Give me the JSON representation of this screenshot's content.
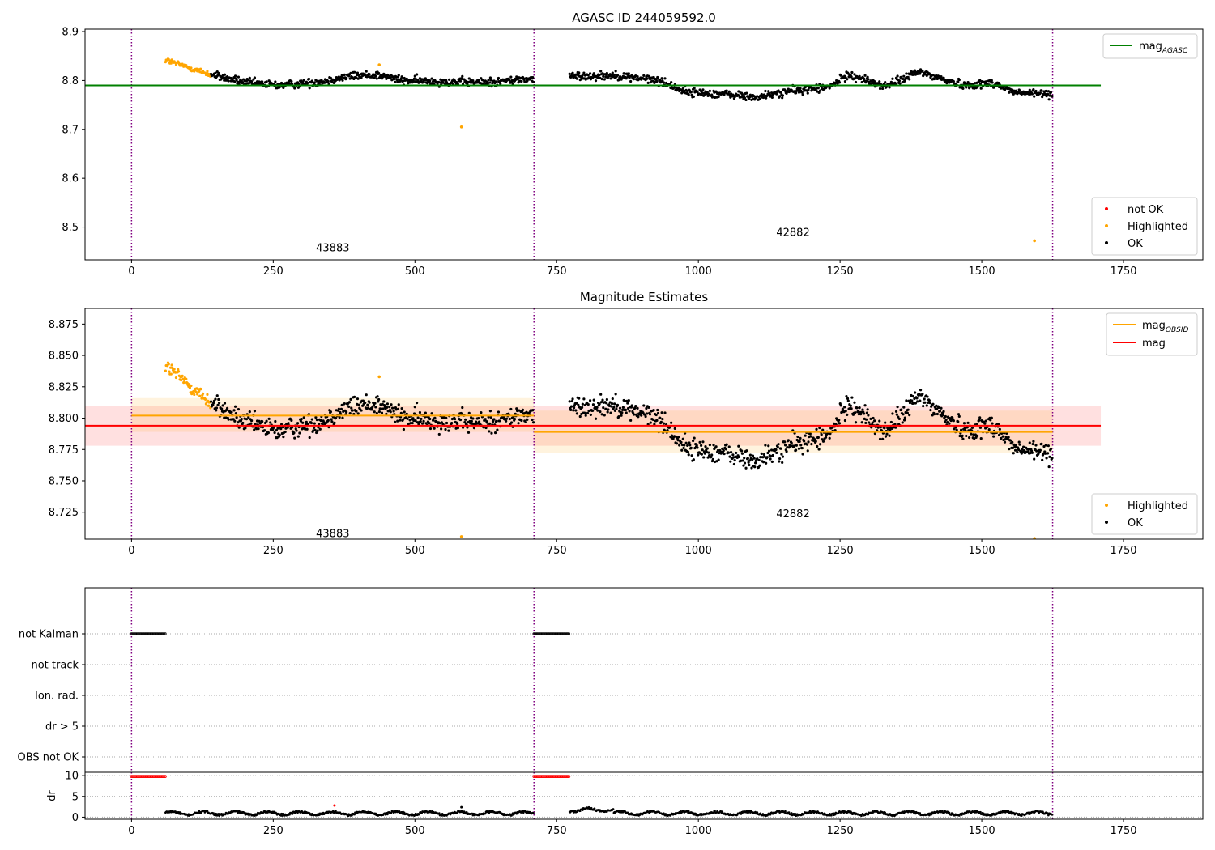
{
  "chart_data": [
    {
      "type": "scatter",
      "title": "AGASC ID 244059592.0",
      "xlim": [
        -82,
        1890
      ],
      "ylim": [
        8.433,
        8.905
      ],
      "xticks": [
        0,
        250,
        500,
        750,
        1000,
        1250,
        1500,
        1750
      ],
      "yticks": [
        8.5,
        8.6,
        8.7,
        8.8,
        8.9
      ],
      "ytick_labels": [
        "8.5",
        "8.6",
        "8.7",
        "8.8",
        "8.9"
      ],
      "vlines": [
        0,
        710,
        1625
      ],
      "obsid_labels": [
        {
          "text": "43883",
          "x": 355,
          "y": 8.45
        },
        {
          "text": "42882",
          "x": 1167,
          "y": 8.482
        }
      ],
      "hlines": [
        {
          "name": "mag_AGASC",
          "y": 8.79,
          "x0": -82,
          "x1": 1710,
          "color": "#008000"
        }
      ],
      "legend_lines": [
        {
          "label": "mag",
          "sub": "AGASC",
          "color": "#008000"
        }
      ],
      "legend_points": [
        {
          "label": "not OK",
          "color": "#ff0000"
        },
        {
          "label": "Highlighted",
          "color": "#ffa500"
        },
        {
          "label": "OK",
          "color": "#000000"
        }
      ],
      "outliers": [
        {
          "x": 582,
          "y": 8.705,
          "color": "#ffa500"
        },
        {
          "x": 437,
          "y": 8.832,
          "color": "#ffa500"
        },
        {
          "x": 1593,
          "y": 8.472,
          "color": "#ffa500"
        }
      ]
    },
    {
      "type": "scatter",
      "title": "Magnitude Estimates",
      "xlim": [
        -82,
        1890
      ],
      "ylim": [
        8.7035,
        8.8875
      ],
      "xticks": [
        0,
        250,
        500,
        750,
        1000,
        1250,
        1500,
        1750
      ],
      "yticks": [
        8.725,
        8.75,
        8.775,
        8.8,
        8.825,
        8.85,
        8.875
      ],
      "ytick_labels": [
        "8.725",
        "8.750",
        "8.775",
        "8.800",
        "8.825",
        "8.850",
        "8.875"
      ],
      "vlines": [
        0,
        710,
        1625
      ],
      "obsid_labels": [
        {
          "text": "43883",
          "x": 355,
          "y": 8.705
        },
        {
          "text": "42882",
          "x": 1167,
          "y": 8.721
        }
      ],
      "bands": [
        {
          "x0": -82,
          "x1": 1710,
          "y0": 8.778,
          "y1": 8.81,
          "color": "#ff0000",
          "opacity": 0.12
        },
        {
          "x0": 0,
          "x1": 710,
          "y0": 8.789,
          "y1": 8.816,
          "color": "#ffa500",
          "opacity": 0.13
        },
        {
          "x0": 710,
          "x1": 1625,
          "y0": 8.772,
          "y1": 8.806,
          "color": "#ffa500",
          "opacity": 0.13
        }
      ],
      "hlines": [
        {
          "name": "mag",
          "y": 8.794,
          "x0": -82,
          "x1": 1710,
          "color": "#ff0000"
        },
        {
          "name": "mag_OBSID_43883",
          "y": 8.802,
          "x0": 0,
          "x1": 710,
          "color": "#ffa500"
        },
        {
          "name": "mag_OBSID_42882",
          "y": 8.789,
          "x0": 710,
          "x1": 1625,
          "color": "#ffa500"
        }
      ],
      "legend_lines": [
        {
          "label": "mag",
          "sub": "OBSID",
          "color": "#ffa500"
        },
        {
          "label": "mag",
          "sub": "",
          "color": "#ff0000"
        }
      ],
      "legend_points": [
        {
          "label": "Highlighted",
          "color": "#ffa500"
        },
        {
          "label": "OK",
          "color": "#000000"
        }
      ],
      "outliers": [
        {
          "x": 582,
          "y": 8.7055,
          "color": "#ffa500"
        },
        {
          "x": 437,
          "y": 8.833,
          "color": "#ffa500"
        },
        {
          "x": 1593,
          "y": 8.704,
          "color": "#ffa500"
        }
      ]
    },
    {
      "type": "scatter",
      "title": "",
      "xlim": [
        -82,
        1890
      ],
      "ylim": [
        -0.5,
        5.5
      ],
      "yticks": [
        0,
        1,
        2,
        3,
        4
      ],
      "ytick_labels": [
        "OBS not OK",
        "dr > 5",
        "Ion. rad.",
        "not track",
        "not Kalman"
      ],
      "vlines": [
        0,
        710,
        1625
      ],
      "flag_segments": [
        {
          "row": 4,
          "x0": 0,
          "x1": 60,
          "color": "#000000"
        },
        {
          "row": 4,
          "x0": 710,
          "x1": 772,
          "color": "#000000"
        }
      ]
    },
    {
      "type": "scatter",
      "title": "",
      "ylabel": "dr",
      "xlim": [
        -82,
        1890
      ],
      "ylim": [
        -0.5,
        10.8
      ],
      "xticks": [
        0,
        250,
        500,
        750,
        1000,
        1250,
        1500,
        1750
      ],
      "yticks": [
        0,
        5,
        10
      ],
      "ytick_labels": [
        "0",
        "5",
        "10"
      ],
      "vlines": [
        0,
        710,
        1625
      ],
      "capped": [
        {
          "x0": 0,
          "x1": 60,
          "y": 9.8,
          "color": "#ff0000"
        },
        {
          "x0": 710,
          "x1": 772,
          "y": 9.8,
          "color": "#ff0000"
        }
      ],
      "outliers": [
        {
          "x": 358,
          "y": 2.8,
          "color": "#ff0000"
        },
        {
          "x": 582,
          "y": 2.4,
          "color": "#000000"
        }
      ]
    }
  ]
}
